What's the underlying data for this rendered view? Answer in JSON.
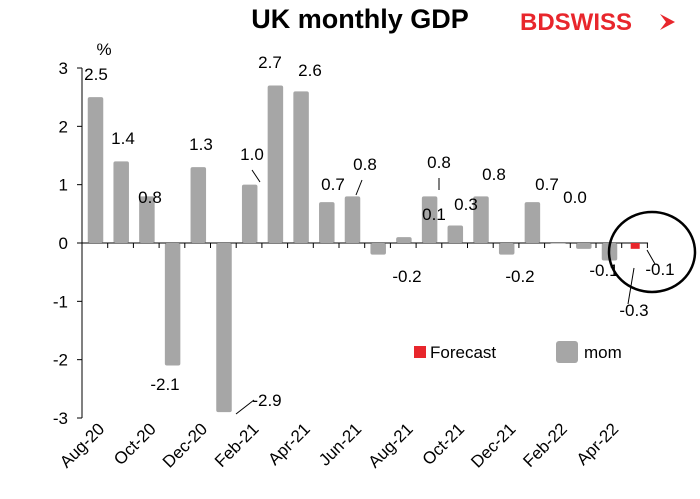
{
  "header": {
    "title": "UK monthly GDP",
    "logo": "BDSWISS"
  },
  "colors": {
    "bar": "#a6a6a6",
    "forecast": "#e8262c",
    "axis": "#000000",
    "brand": "#e8262c"
  },
  "chart_data": {
    "type": "bar",
    "title": "UK monthly GDP",
    "ylabel": "%",
    "xlabel": "",
    "ylim": [
      -3,
      3
    ],
    "yticks": [
      3,
      2,
      1,
      0,
      -1,
      -2,
      -3
    ],
    "x_tick_labels": [
      "Aug-20",
      "Oct-20",
      "Dec-20",
      "Feb-21",
      "Apr-21",
      "Jun-21",
      "Aug-21",
      "Oct-21",
      "Dec-21",
      "Feb-22",
      "Apr-22"
    ],
    "categories": [
      "Aug-20",
      "Sep-20",
      "Oct-20",
      "Nov-20",
      "Dec-20",
      "Jan-21",
      "Feb-21",
      "Mar-21",
      "Apr-21",
      "May-21",
      "Jun-21",
      "Jul-21",
      "Aug-21",
      "Sep-21",
      "Oct-21",
      "Nov-21",
      "Dec-21",
      "Jan-22",
      "Feb-22",
      "Mar-22",
      "Apr-22",
      "May-22"
    ],
    "series": [
      {
        "name": "mom",
        "values": [
          2.5,
          1.4,
          0.8,
          -2.1,
          1.3,
          -2.9,
          1.0,
          2.7,
          2.6,
          0.7,
          0.8,
          -0.2,
          0.1,
          0.8,
          0.3,
          0.8,
          -0.2,
          0.7,
          0.0,
          -0.1,
          -0.3,
          null
        ]
      },
      {
        "name": "Forecast",
        "values": [
          null,
          null,
          null,
          null,
          null,
          null,
          null,
          null,
          null,
          null,
          null,
          null,
          null,
          null,
          null,
          null,
          null,
          null,
          null,
          null,
          null,
          -0.1
        ]
      }
    ],
    "data_labels": [
      "2.5",
      "1.4",
      "0.8",
      "-2.1",
      "1.3",
      "-2.9",
      "1.0",
      "2.7",
      "2.6",
      "0.7",
      "0.8",
      "-0.2",
      "0.1",
      "0.8",
      "0.3",
      "0.8",
      "-0.2",
      "0.7",
      "0.0",
      "-0.1",
      "-0.3",
      "-0.1"
    ],
    "legend": {
      "entries": [
        "Forecast",
        "mom"
      ],
      "placement": "bottom-right"
    },
    "annotation": "circle around latest bars",
    "grid": false
  }
}
